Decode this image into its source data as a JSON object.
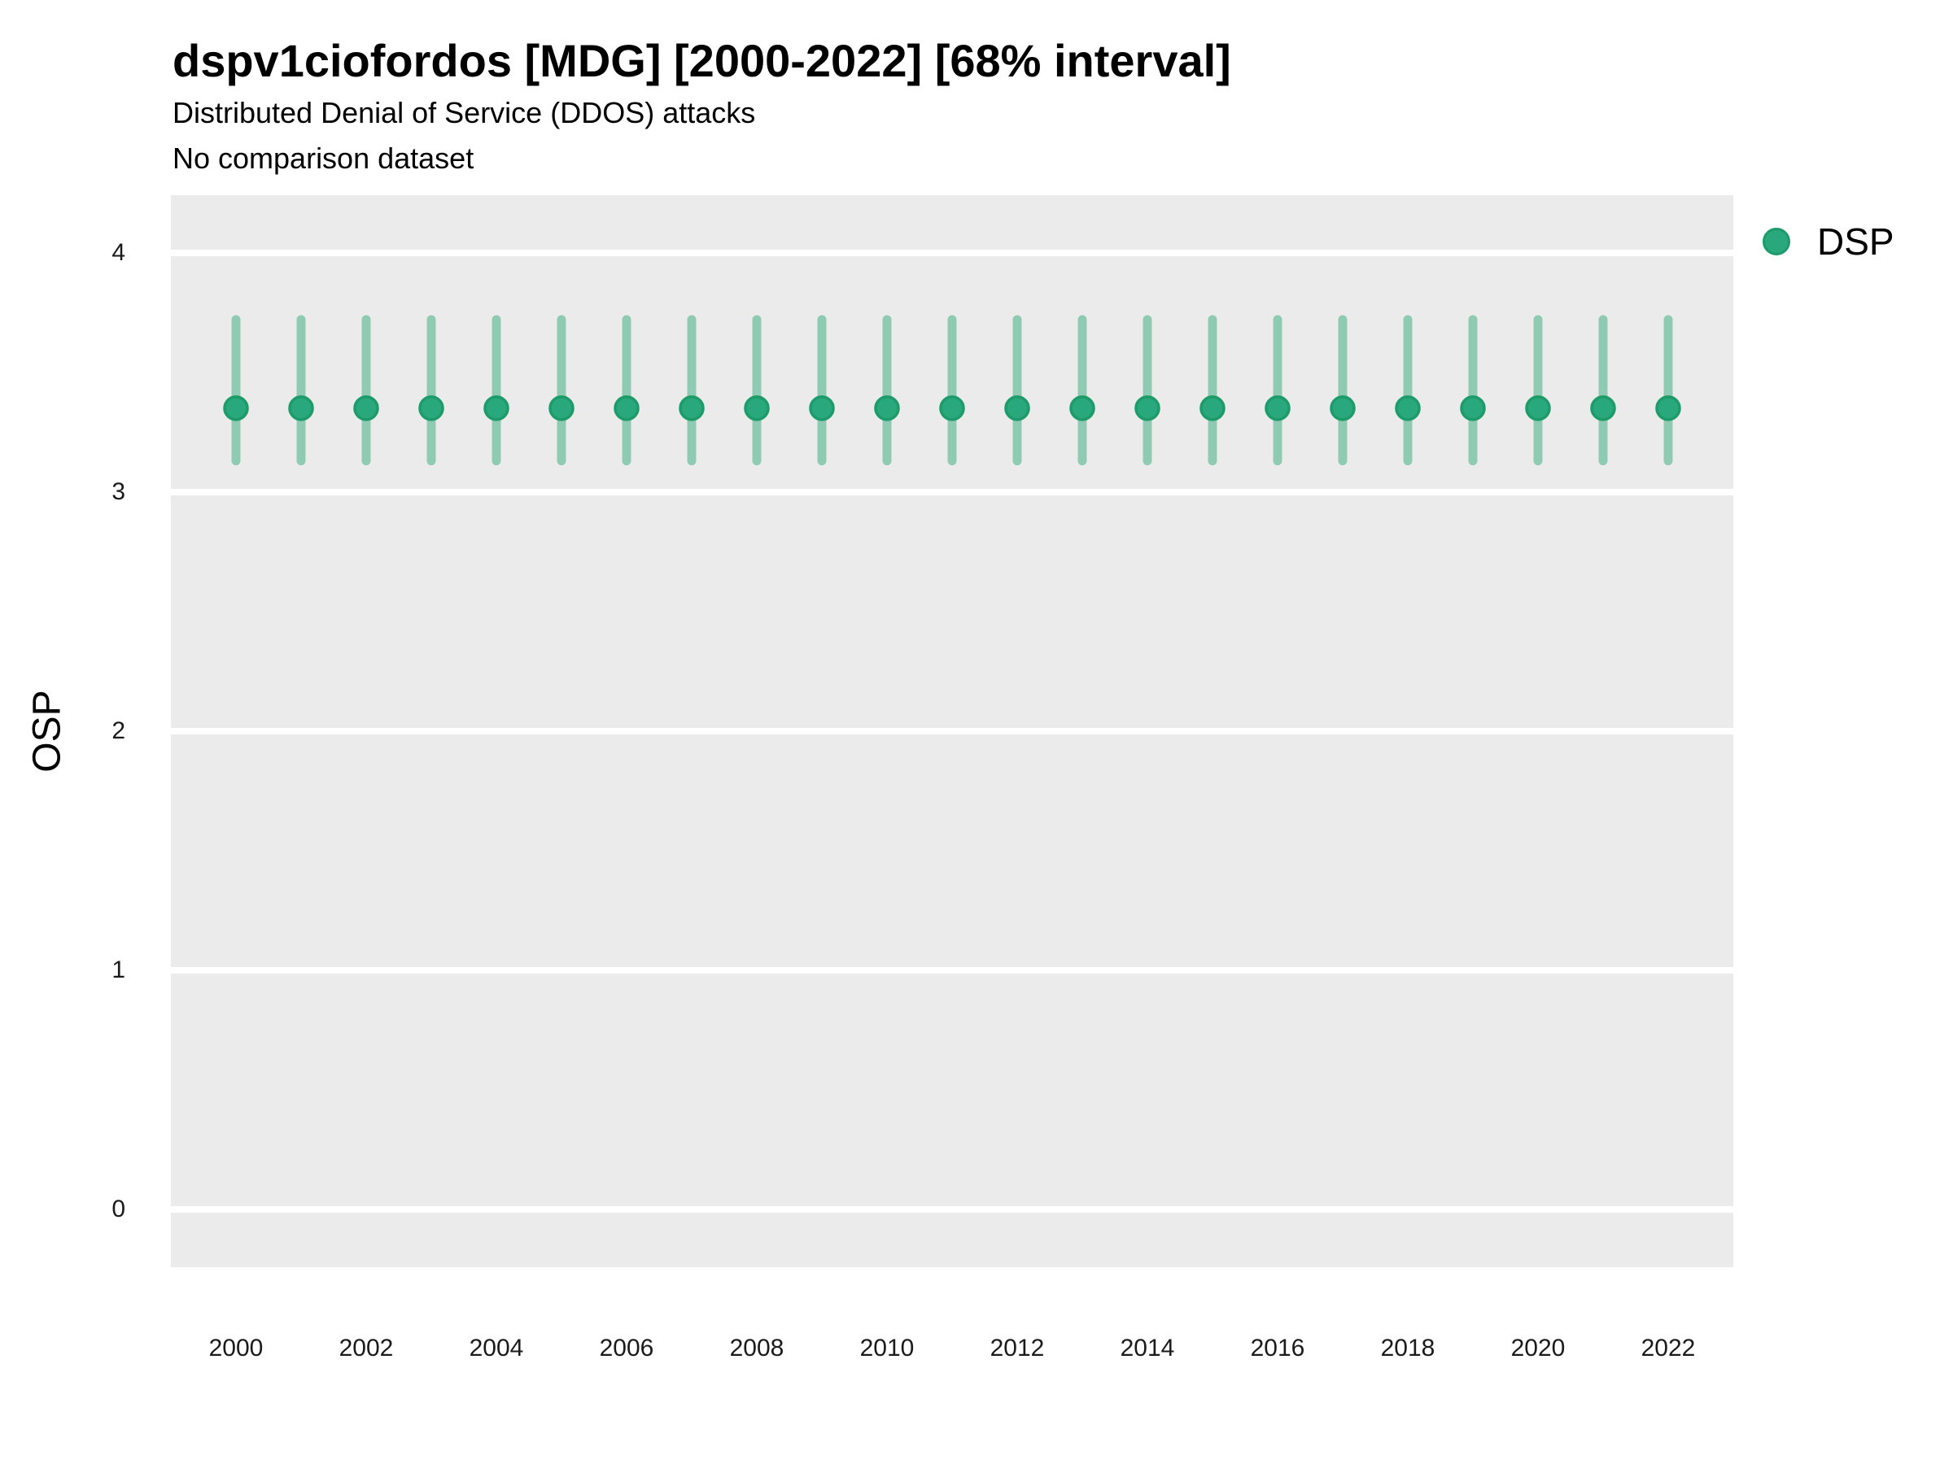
{
  "page": {
    "background": "#FFFFFF",
    "panel_background": "#EBEBEB"
  },
  "header": {
    "title": "dspv1ciofordos [MDG] [2000-2022] [68% interval]",
    "subtitle": "Distributed Denial of Service (DDOS) attacks",
    "note": "No comparison dataset"
  },
  "legend": {
    "position": "right",
    "items": [
      {
        "label": "DSP",
        "color": "#2AA87D",
        "marker": "circle"
      }
    ]
  },
  "chart_data": {
    "type": "scatter",
    "variant": "point-interval",
    "title": "dspv1ciofordos [MDG] [2000-2022] [68% interval]",
    "subtitle": "Distributed Denial of Service (DDOS) attacks",
    "note": "No comparison dataset",
    "interval": "68%",
    "xlabel": "",
    "ylabel": "OSP",
    "x": [
      2000,
      2001,
      2002,
      2003,
      2004,
      2005,
      2006,
      2007,
      2008,
      2009,
      2010,
      2011,
      2012,
      2013,
      2014,
      2015,
      2016,
      2017,
      2018,
      2019,
      2020,
      2021,
      2022
    ],
    "series": [
      {
        "name": "DSP",
        "color": "#2AA87D",
        "marker_stroke": "#1E9B6B",
        "interval_color": "#8FCBB2",
        "values": [
          3.35,
          3.35,
          3.35,
          3.35,
          3.35,
          3.35,
          3.35,
          3.35,
          3.35,
          3.35,
          3.35,
          3.35,
          3.35,
          3.35,
          3.35,
          3.35,
          3.35,
          3.35,
          3.35,
          3.35,
          3.35,
          3.35,
          3.35
        ],
        "lower": [
          3.13,
          3.13,
          3.13,
          3.13,
          3.13,
          3.13,
          3.13,
          3.13,
          3.13,
          3.13,
          3.13,
          3.13,
          3.13,
          3.13,
          3.13,
          3.13,
          3.13,
          3.13,
          3.13,
          3.13,
          3.13,
          3.13,
          3.13
        ],
        "upper": [
          3.72,
          3.72,
          3.72,
          3.72,
          3.72,
          3.72,
          3.72,
          3.72,
          3.72,
          3.72,
          3.72,
          3.72,
          3.72,
          3.72,
          3.72,
          3.72,
          3.72,
          3.72,
          3.72,
          3.72,
          3.72,
          3.72,
          3.72
        ]
      }
    ],
    "xticks": [
      2000,
      2002,
      2004,
      2006,
      2008,
      2010,
      2012,
      2014,
      2016,
      2018,
      2020,
      2022
    ],
    "yticks": [
      0,
      1,
      2,
      3,
      4
    ],
    "xlim": [
      1999,
      2023
    ],
    "ylim": [
      -0.24,
      4.24
    ],
    "grid": "major-horizontal-white",
    "legend_position": "right"
  }
}
